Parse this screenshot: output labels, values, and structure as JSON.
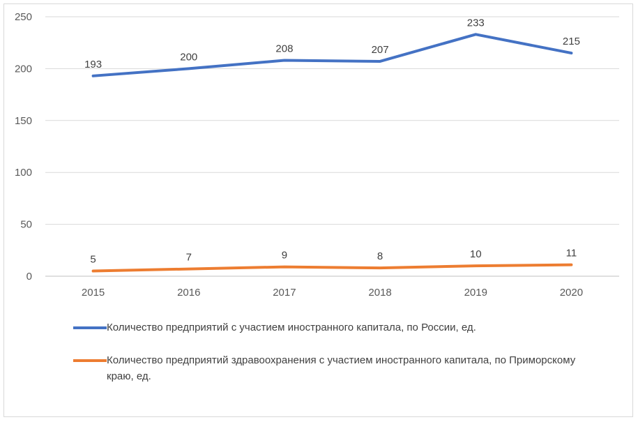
{
  "chart_data": {
    "type": "line",
    "x": [
      "2015",
      "2016",
      "2017",
      "2018",
      "2019",
      "2020"
    ],
    "series": [
      {
        "name": "Количество предприятий с участием иностранного капитала, по России, ед.",
        "values": [
          193,
          200,
          208,
          207,
          233,
          215
        ],
        "color": "#4472c4"
      },
      {
        "name": "Количество предприятий здравоохранения с участием иностранного капитала, по Приморскому краю, ед.",
        "values": [
          5,
          7,
          9,
          8,
          10,
          11
        ],
        "color": "#ed7d31"
      }
    ],
    "y_ticks": [
      "0",
      "50",
      "100",
      "150",
      "200",
      "250"
    ],
    "ylim": [
      0,
      250
    ],
    "grid": true,
    "legend": "bottom"
  }
}
